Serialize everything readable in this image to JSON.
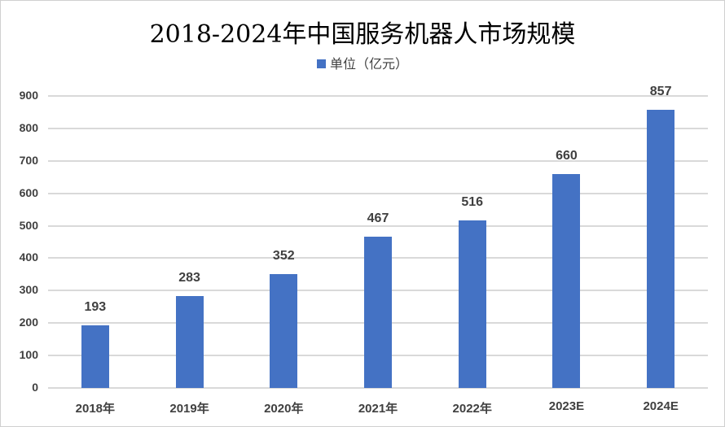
{
  "chart_data": {
    "type": "bar",
    "title": "2018-2024年中国服务机器人市场规模",
    "legend": [
      {
        "name": "单位（亿元）",
        "color": "#4472C4"
      }
    ],
    "legend_position": "top",
    "categories": [
      "2018年",
      "2019年",
      "2020年",
      "2021年",
      "2022年",
      "2023E",
      "2024E"
    ],
    "series": [
      {
        "name": "单位（亿元）",
        "values": [
          193,
          283,
          352,
          467,
          516,
          660,
          857
        ]
      }
    ],
    "xlabel": "",
    "ylabel": "",
    "ylim": [
      0,
      900
    ],
    "yticks": [
      0,
      100,
      200,
      300,
      400,
      500,
      600,
      700,
      800,
      900
    ],
    "grid": true,
    "data_labels": true
  },
  "colors": {
    "bar": "#4472C4",
    "grid": "#D9D9D9",
    "text": "#404040"
  }
}
